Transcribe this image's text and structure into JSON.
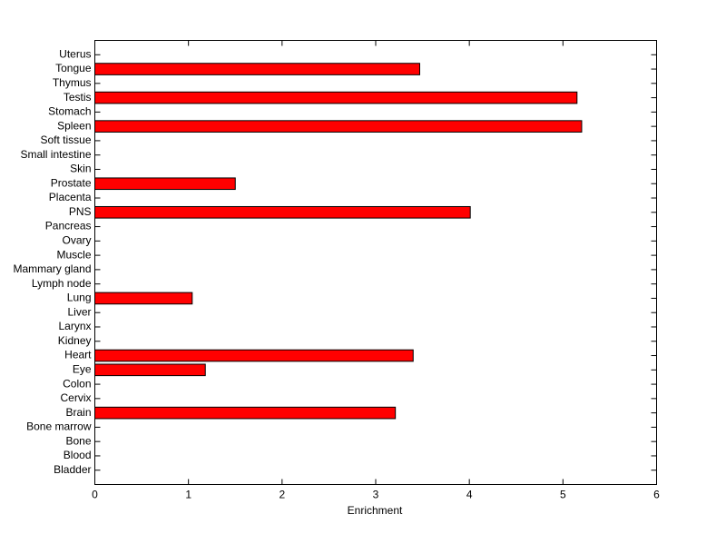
{
  "chart_data": {
    "type": "barh",
    "x_label": "Enrichment",
    "categories": [
      "Uterus",
      "Tongue",
      "Thymus",
      "Testis",
      "Stomach",
      "Spleen",
      "Soft tissue",
      "Small intestine",
      "Skin",
      "Prostate",
      "Placenta",
      "PNS",
      "Pancreas",
      "Ovary",
      "Muscle",
      "Mammary gland",
      "Lymph node",
      "Lung",
      "Liver",
      "Larynx",
      "Kidney",
      "Heart",
      "Eye",
      "Colon",
      "Cervix",
      "Brain",
      "Bone marrow",
      "Bone",
      "Blood",
      "Bladder"
    ],
    "values": [
      0,
      3.47,
      0,
      5.15,
      0,
      5.2,
      0,
      0,
      0,
      1.5,
      0,
      4.01,
      0,
      0,
      0,
      0,
      0,
      1.04,
      0,
      0,
      0,
      3.4,
      1.18,
      0,
      0,
      3.21,
      0,
      0,
      0,
      0
    ],
    "color": "#ff0000",
    "xlim": [
      0,
      6
    ],
    "xticks": [
      0,
      1,
      2,
      3,
      4,
      5,
      6
    ]
  }
}
